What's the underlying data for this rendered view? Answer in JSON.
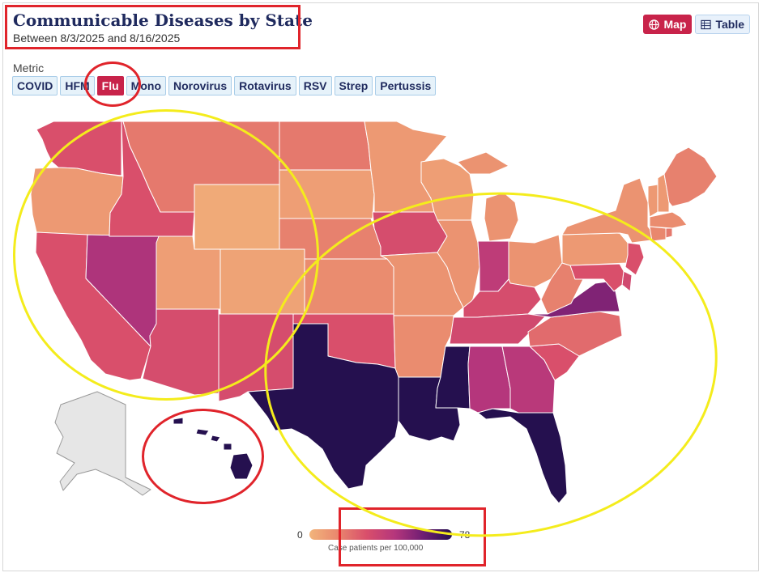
{
  "header": {
    "title": "Communicable Diseases by State",
    "subtitle": "Between 8/3/2025 and 8/16/2025"
  },
  "view_toggle": {
    "map_label": "Map",
    "table_label": "Table",
    "selected": "Map"
  },
  "metric": {
    "label": "Metric",
    "selected": "Flu",
    "options": [
      "COVID",
      "HFM",
      "Flu",
      "Mono",
      "Norovirus",
      "Rotavirus",
      "RSV",
      "Strep",
      "Pertussis"
    ]
  },
  "legend": {
    "min_label": "0",
    "max_label": "78",
    "title": "Case patients per 100,000",
    "min": 0,
    "max": 78,
    "colors": [
      "#f2b57b",
      "#e9876e",
      "#d94f6b",
      "#b5367c",
      "#6e1d73",
      "#25104f"
    ]
  },
  "map": {
    "no_data_color": "#e6e6e6",
    "states": [
      {
        "name": "Washington",
        "level": 0.4
      },
      {
        "name": "Oregon",
        "level": 0.12
      },
      {
        "name": "California",
        "level": 0.4
      },
      {
        "name": "Nevada",
        "level": 0.62
      },
      {
        "name": "Idaho",
        "level": 0.4
      },
      {
        "name": "Montana",
        "level": 0.25
      },
      {
        "name": "Wyoming",
        "level": 0.05
      },
      {
        "name": "Utah",
        "level": 0.1
      },
      {
        "name": "Arizona",
        "level": 0.42
      },
      {
        "name": "Colorado",
        "level": 0.08
      },
      {
        "name": "New Mexico",
        "level": 0.42
      },
      {
        "name": "North Dakota",
        "level": 0.25
      },
      {
        "name": "South Dakota",
        "level": 0.1
      },
      {
        "name": "Nebraska",
        "level": 0.22
      },
      {
        "name": "Kansas",
        "level": 0.18
      },
      {
        "name": "Oklahoma",
        "level": 0.4
      },
      {
        "name": "Texas",
        "level": 1.0
      },
      {
        "name": "Minnesota",
        "level": 0.12
      },
      {
        "name": "Iowa",
        "level": 0.42
      },
      {
        "name": "Missouri",
        "level": 0.15
      },
      {
        "name": "Arkansas",
        "level": 0.18
      },
      {
        "name": "Louisiana",
        "level": 1.0
      },
      {
        "name": "Wisconsin",
        "level": 0.1
      },
      {
        "name": "Illinois",
        "level": 0.15
      },
      {
        "name": "Michigan",
        "level": 0.15
      },
      {
        "name": "Indiana",
        "level": 0.55
      },
      {
        "name": "Ohio",
        "level": 0.15
      },
      {
        "name": "Kentucky",
        "level": 0.42
      },
      {
        "name": "Tennessee",
        "level": 0.45
      },
      {
        "name": "Mississippi",
        "level": 1.0
      },
      {
        "name": "Alabama",
        "level": 0.6
      },
      {
        "name": "Georgia",
        "level": 0.58
      },
      {
        "name": "Florida",
        "level": 1.0
      },
      {
        "name": "South Carolina",
        "level": 0.4
      },
      {
        "name": "North Carolina",
        "level": 0.3
      },
      {
        "name": "Virginia",
        "level": 0.75
      },
      {
        "name": "West Virginia",
        "level": 0.22
      },
      {
        "name": "Pennsylvania",
        "level": 0.12
      },
      {
        "name": "New York",
        "level": 0.15
      },
      {
        "name": "New Jersey",
        "level": 0.4
      },
      {
        "name": "Delaware",
        "level": 0.45
      },
      {
        "name": "Maryland",
        "level": 0.4
      },
      {
        "name": "Vermont",
        "level": 0.12
      },
      {
        "name": "New Hampshire",
        "level": 0.12
      },
      {
        "name": "Maine",
        "level": 0.22
      },
      {
        "name": "Massachusetts",
        "level": 0.18
      },
      {
        "name": "Connecticut",
        "level": 0.2
      },
      {
        "name": "Rhode Island",
        "level": 0.25
      },
      {
        "name": "Hawaii",
        "level": 1.0
      },
      {
        "name": "Alaska",
        "level": null
      }
    ]
  }
}
